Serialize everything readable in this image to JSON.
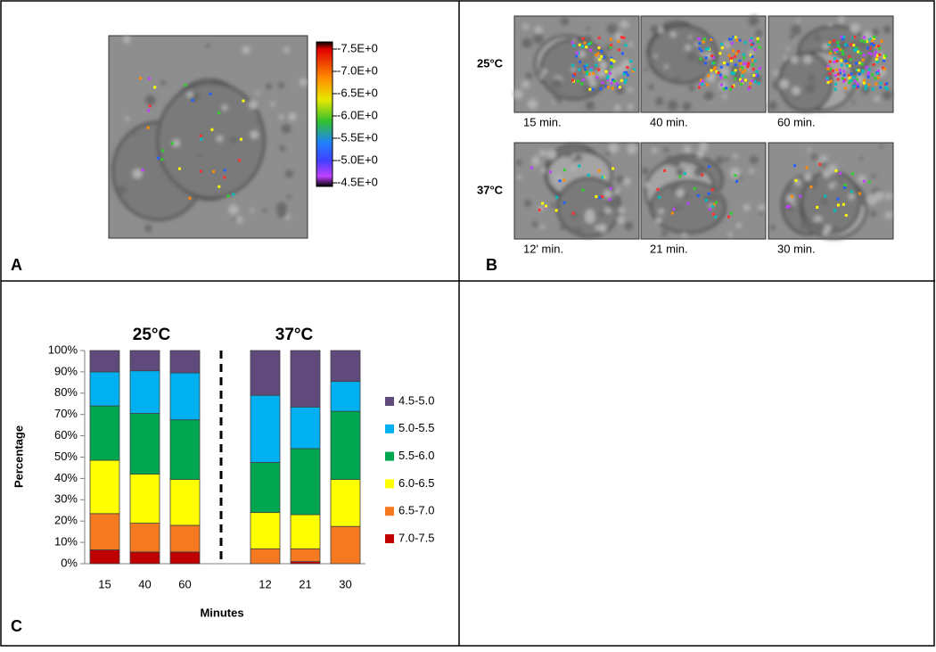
{
  "panel_labels": [
    "A",
    "B",
    "C"
  ],
  "colorbar": {
    "labels": [
      "-7.5E+0",
      "-7.0E+0",
      "-6.5E+0",
      "-6.0E+0",
      "-5.5E+0",
      "-5.0E+0",
      "-4.5E+0"
    ]
  },
  "panel_b": {
    "rows": [
      {
        "label": "25°C",
        "captions": [
          "15 min.",
          "40 min.",
          "60 min."
        ]
      },
      {
        "label": "37°C",
        "captions": [
          "12' min.",
          "21 min.",
          "30 min."
        ]
      }
    ]
  },
  "chart_data": {
    "type": "stacked_bar",
    "annotations": [
      "25°C",
      "37°C"
    ],
    "x_label": "Minutes",
    "y_label": "Percentage",
    "categories": [
      "15",
      "40",
      "60",
      null,
      "12",
      "21",
      "30"
    ],
    "ylim": [
      0,
      100
    ],
    "yticks": [
      {
        "value": 0,
        "label": "0%"
      },
      {
        "value": 10,
        "label": "10%"
      },
      {
        "value": 20,
        "label": "20%"
      },
      {
        "value": 30,
        "label": "30%"
      },
      {
        "value": 40,
        "label": "40%"
      },
      {
        "value": 50,
        "label": "50%"
      },
      {
        "value": 60,
        "label": "60%"
      },
      {
        "value": 70,
        "label": "70%"
      },
      {
        "value": 80,
        "label": "80%"
      },
      {
        "value": 90,
        "label": "90%"
      },
      {
        "value": 100,
        "label": "100%"
      }
    ],
    "series": [
      {
        "name": "7.0-7.5",
        "color": "#c00000",
        "values": [
          6.5,
          5.5,
          5.5,
          null,
          0,
          1,
          0
        ]
      },
      {
        "name": "6.5-7.0",
        "color": "#f47920",
        "values": [
          17,
          13.5,
          12.5,
          null,
          7,
          6,
          17.5
        ]
      },
      {
        "name": "6.0-6.5",
        "color": "#ffff00",
        "values": [
          25,
          23,
          21.5,
          null,
          17,
          16,
          22
        ]
      },
      {
        "name": "5.5-6.0",
        "color": "#00a650",
        "values": [
          25.5,
          28.5,
          28,
          null,
          23.5,
          31,
          32
        ]
      },
      {
        "name": "5.0-5.5",
        "color": "#00b0f0",
        "values": [
          16,
          20,
          22,
          null,
          31.5,
          19.5,
          14
        ]
      },
      {
        "name": "4.5-5.0",
        "color": "#604a7b",
        "values": [
          10,
          9.5,
          10.5,
          null,
          21,
          26.5,
          14.5
        ]
      }
    ]
  }
}
